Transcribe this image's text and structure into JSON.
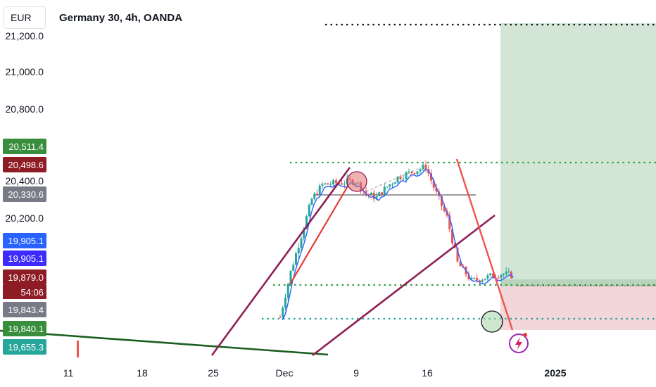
{
  "toolbar": {
    "currency": "EUR",
    "symbol_title": "Germany 30, 4h, OANDA"
  },
  "price_tags": [
    {
      "label": "20,511.4",
      "color": "#388e3c"
    },
    {
      "label": "20,498.6",
      "color": "#8d1c24"
    },
    {
      "label": "20,330.6",
      "color": "#787b86"
    },
    {
      "label": "19,905.1",
      "color": "#2962ff"
    },
    {
      "label": "19,905.1",
      "color": "#3d2bff"
    },
    {
      "label": "19,879.0",
      "color": "#8d1c24"
    },
    {
      "label": "19,843.4",
      "color": "#787b86"
    },
    {
      "label": "19,840.1",
      "color": "#388e3c"
    },
    {
      "label": "19,655.3",
      "color": "#26a69a"
    }
  ],
  "countdown": "54:06",
  "chart_data": {
    "type": "candlestick",
    "title": "Germany 30, 4h, OANDA",
    "y_tick_labels": [
      "21,200.0",
      "21,000.0",
      "20,800.0",
      "20,400.0",
      "20,200.0"
    ],
    "x_tick_labels": [
      "11",
      "18",
      "25",
      "Dec",
      "9",
      "16",
      "2025"
    ],
    "approx_price_path": [
      [
        "Dec 2",
        19650
      ],
      [
        "Dec 3",
        19900
      ],
      [
        "Dec 4",
        20100
      ],
      [
        "Dec 5",
        20300
      ],
      [
        "Dec 6",
        20380
      ],
      [
        "Dec 9",
        20400
      ],
      [
        "Dec 10",
        20330
      ],
      [
        "Dec 11",
        20310
      ],
      [
        "Dec 12",
        20370
      ],
      [
        "Dec 13",
        20420
      ],
      [
        "Dec 16",
        20480
      ],
      [
        "Dec 17",
        20330
      ],
      [
        "Dec 18",
        20200
      ],
      [
        "Dec 19",
        19950
      ],
      [
        "Dec 20",
        19850
      ],
      [
        "Dec 23",
        19890
      ],
      [
        "Dec 24",
        19880
      ]
    ],
    "levels": {
      "entry": 19879.0,
      "stop": 19655.3,
      "target": 21270
    },
    "annotations": [
      "rising wedge lines",
      "descending trendline",
      "long position box",
      "top circle",
      "bottom circle"
    ],
    "colors": {
      "up": "#26a69a",
      "down": "#ef5350",
      "ma": "#2962ff",
      "profit_zone": "#cfe3d2",
      "loss_zone": "#f3d6d9",
      "wedge": "#8e1f55"
    }
  }
}
